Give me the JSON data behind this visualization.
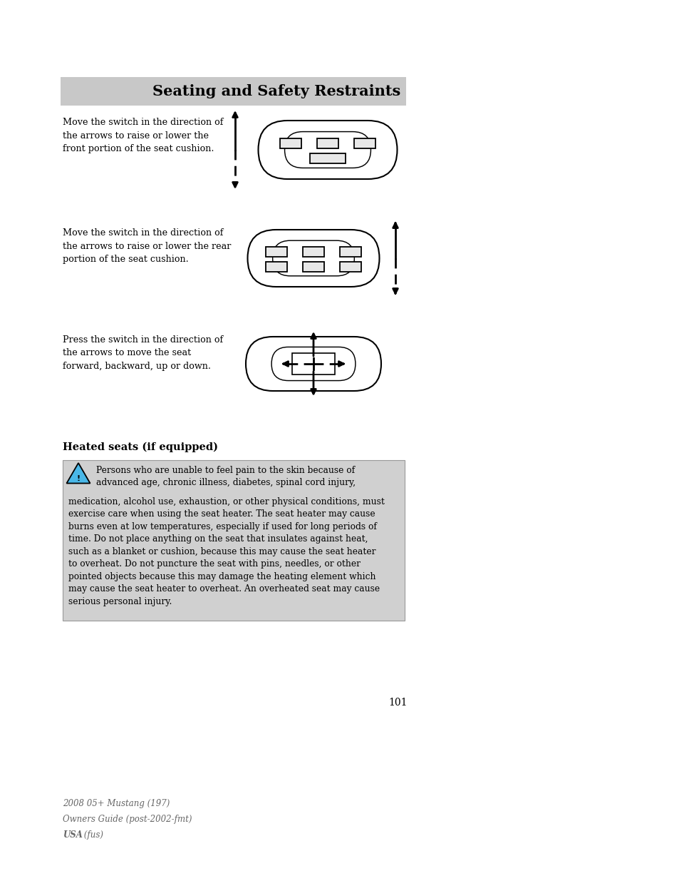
{
  "page_bg": "#ffffff",
  "header_bg": "#c8c8c8",
  "header_text": "Seating and Safety Restraints",
  "header_fontsize": 15,
  "warning_bg": "#d0d0d0",
  "section_title": "Heated seats (if equipped)",
  "section_title_fontsize": 10.5,
  "page_number": "101",
  "footer_line1": "2008 05+ Mustang (197)",
  "footer_line2": "Owners Guide (post-2002-fmt)",
  "footer_line3_bold": "USA",
  "footer_line3_italic": " (fus)",
  "para1_text": "Move the switch in the direction of\nthe arrows to raise or lower the\nfront portion of the seat cushion.",
  "para2_text": "Move the switch in the direction of\nthe arrows to raise or lower the rear\nportion of the seat cushion.",
  "para3_text": "Press the switch in the direction of\nthe arrows to move the seat\nforward, backward, up or down.",
  "warning_text_top": "Persons who are unable to feel pain to the skin because of\nadvanced age, chronic illness, diabetes, spinal cord injury,",
  "warning_text_rest": "medication, alcohol use, exhaustion, or other physical conditions, must\nexercise care when using the seat heater. The seat heater may cause\nburns even at low temperatures, especially if used for long periods of\ntime. Do not place anything on the seat that insulates against heat,\nsuch as a blanket or cushion, because this may cause the seat heater\nto overheat. Do not puncture the seat with pins, needles, or other\npointed objects because this may damage the heating element which\nmay cause the seat heater to overheat. An overheated seat may cause\nserious personal injury.",
  "body_fontsize": 9.2,
  "warn_fontsize": 8.8
}
